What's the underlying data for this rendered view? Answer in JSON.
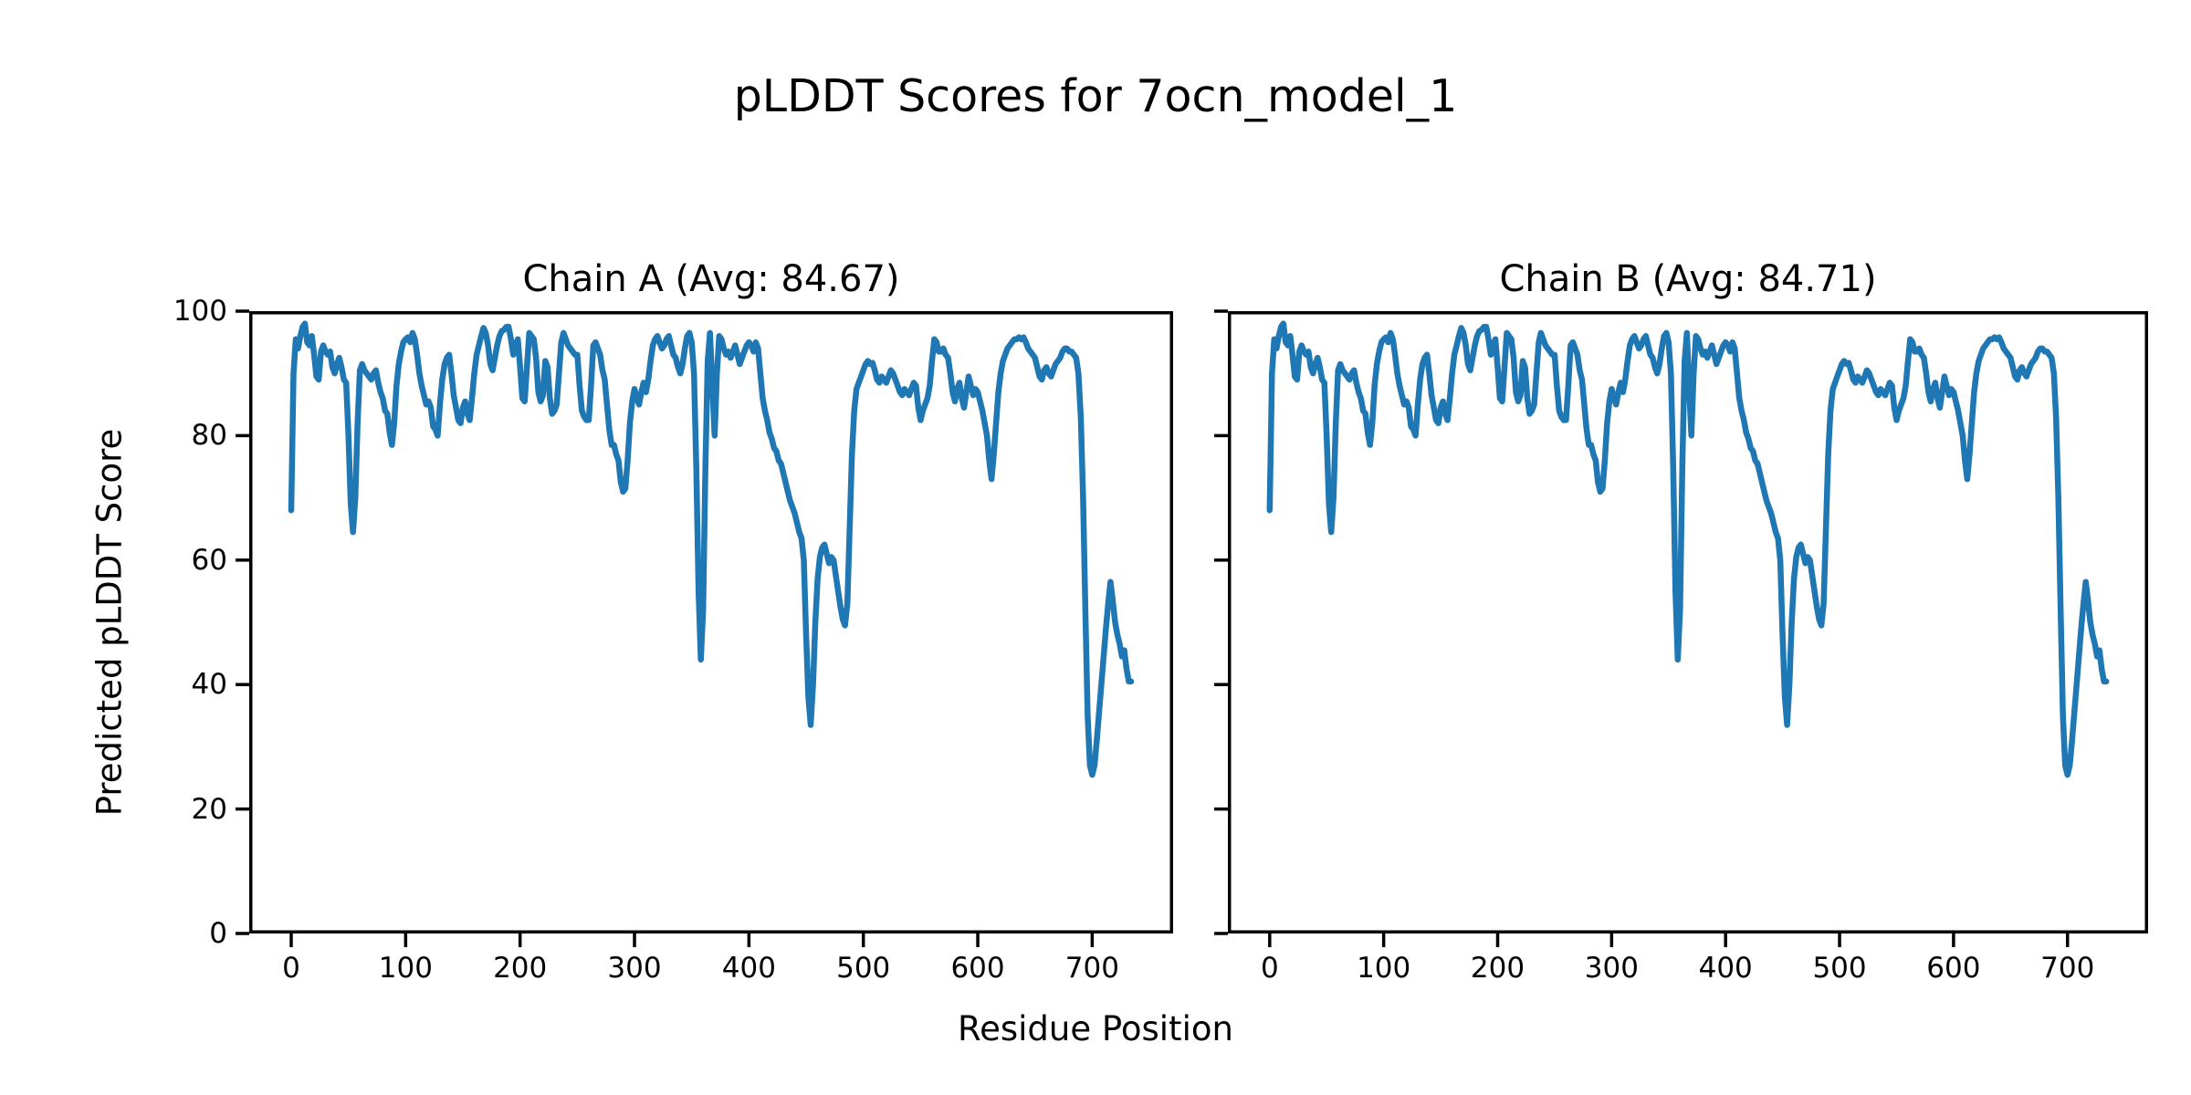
{
  "figure": {
    "background_color": "#ffffff",
    "text_color": "#000000"
  },
  "chart_data": {
    "type": "line",
    "title": "pLDDT Scores for 7ocn_model_1",
    "xlabel": "Residue Position",
    "ylabel": "Predicted pLDDT Score",
    "x_ticks": [
      0,
      100,
      200,
      300,
      400,
      500,
      600,
      700
    ],
    "y_ticks": [
      0,
      20,
      40,
      60,
      80,
      100
    ],
    "xlim": [
      -36.7,
      770.7
    ],
    "ylim": [
      0,
      100
    ],
    "grid": false,
    "legend": "none",
    "line_color": "#1f77b4",
    "x_start": 0,
    "x_step": 2,
    "series": [
      {
        "name": "Chain A",
        "avg": 84.67,
        "title": "Chain A (Avg: 84.67)",
        "values": [
          68,
          90,
          95.5,
          94,
          96,
          97.5,
          98,
          95,
          94.5,
          96,
          93,
          89.5,
          89,
          93.5,
          94.5,
          93.5,
          93,
          93.5,
          91,
          90,
          91.5,
          92.5,
          91,
          89,
          88.5,
          80,
          69,
          64.5,
          70,
          82,
          90.5,
          91.5,
          90.5,
          90,
          89.5,
          89,
          90,
          90.5,
          88.5,
          87,
          86,
          84,
          83.5,
          80.5,
          78.5,
          82,
          88,
          91.5,
          93.5,
          95,
          95.5,
          95.8,
          95,
          96.5,
          95.5,
          93,
          90,
          88,
          86.5,
          85,
          85.5,
          84.5,
          81.5,
          81,
          80,
          85,
          89,
          91.5,
          92.5,
          93,
          90,
          86.5,
          84.5,
          82.5,
          82,
          84.5,
          85.5,
          83.5,
          82.5,
          86,
          90,
          93,
          94.5,
          96,
          97.3,
          96.5,
          94.5,
          91.5,
          90.5,
          92.5,
          94.5,
          96,
          96.8,
          97,
          97.5,
          97.5,
          95.5,
          93,
          94.5,
          95.5,
          91,
          86,
          85.5,
          91,
          96.5,
          96,
          95.5,
          92.5,
          87,
          85.5,
          86.5,
          92,
          91,
          86,
          83.5,
          84,
          85,
          90,
          95,
          96.5,
          95.5,
          94.5,
          94,
          93.5,
          93,
          93,
          88,
          84,
          83,
          82.5,
          82.5,
          88,
          94.5,
          95,
          94,
          93,
          90.5,
          89,
          85,
          81,
          78.5,
          78.5,
          77,
          76,
          72.5,
          71,
          71.5,
          76,
          82,
          85.5,
          87.5,
          86,
          85,
          87,
          88.5,
          87,
          89,
          92,
          94.5,
          95.5,
          96,
          95,
          94,
          94.5,
          95.5,
          96,
          94.5,
          93,
          92.5,
          91,
          90,
          91.5,
          94,
          96,
          96.5,
          95,
          90,
          75,
          55,
          44,
          52,
          75,
          92,
          96.5,
          88,
          80,
          90,
          96,
          95.5,
          94,
          93,
          93.5,
          92.5,
          93.5,
          94.5,
          93,
          91.5,
          92.5,
          93.5,
          94.5,
          95,
          94.5,
          93.5,
          95,
          94,
          90,
          86,
          84,
          82.5,
          80.5,
          79.5,
          78,
          77.5,
          76,
          75.5,
          74,
          72.5,
          71,
          69.5,
          68.5,
          67.5,
          66,
          64.5,
          63.5,
          60,
          48,
          38,
          33.5,
          40,
          50,
          57,
          60.5,
          62,
          62.5,
          61,
          59.5,
          60.5,
          60,
          57.5,
          55,
          52.5,
          50.5,
          49.5,
          53,
          65,
          77,
          84,
          87.5,
          88.5,
          89.5,
          90.5,
          91.5,
          92,
          91.5,
          91.7,
          90.5,
          89,
          88.5,
          89.5,
          89,
          88.5,
          89.5,
          90.5,
          90,
          89,
          88,
          87,
          86.5,
          87.5,
          87,
          86.5,
          87.5,
          88.5,
          88,
          84.5,
          82.5,
          84,
          85,
          86,
          88,
          92,
          95.5,
          95,
          93.5,
          93.5,
          94,
          93,
          92.5,
          90,
          87,
          85.5,
          87.5,
          88.5,
          86,
          84.5,
          87,
          89.5,
          88,
          86.5,
          87.5,
          87,
          85.5,
          84,
          82,
          80,
          76,
          73,
          77,
          82,
          87,
          90,
          92,
          93,
          94,
          94.5,
          95,
          95.5,
          95.5,
          95.8,
          95.5,
          95.8,
          95,
          94,
          93.5,
          93,
          92.5,
          91,
          89.5,
          89,
          90.5,
          91,
          90,
          89.5,
          90.5,
          91.5,
          92,
          92.5,
          93.5,
          94,
          94,
          93.5,
          93.5,
          93,
          92.5,
          90,
          83,
          70,
          52,
          35,
          27,
          25.5,
          27,
          31,
          35.5,
          40,
          44.5,
          49,
          53,
          56.5,
          53.5,
          50,
          48,
          46.5,
          44.5,
          45.5,
          42.5,
          40.5,
          40.5
        ]
      },
      {
        "name": "Chain B",
        "avg": 84.71,
        "title": "Chain B (Avg: 84.71)",
        "values": [
          68,
          90,
          95.5,
          94,
          96,
          97.5,
          98,
          95,
          94.5,
          96,
          93,
          89.5,
          89,
          93.5,
          94.5,
          93.5,
          93,
          93.5,
          91,
          90,
          91.5,
          92.5,
          91,
          89,
          88.5,
          80,
          69,
          64.5,
          70,
          82,
          90.5,
          91.5,
          90.5,
          90,
          89.5,
          89,
          90,
          90.5,
          88.5,
          87,
          86,
          84,
          83.5,
          80.5,
          78.5,
          82,
          88,
          91.5,
          93.5,
          95,
          95.5,
          95.8,
          95,
          96.5,
          95.5,
          93,
          90,
          88,
          86.5,
          85,
          85.5,
          84.5,
          81.5,
          81,
          80,
          85,
          89,
          91.5,
          92.5,
          93,
          90,
          86.5,
          84.5,
          82.5,
          82,
          84.5,
          85.5,
          83.5,
          82.5,
          86,
          90,
          93,
          94.5,
          96,
          97.3,
          96.5,
          94.5,
          91.5,
          90.5,
          92.5,
          94.5,
          96,
          96.8,
          97,
          97.5,
          97.5,
          95.5,
          93,
          94.5,
          95.5,
          91,
          86,
          85.5,
          91,
          96.5,
          96,
          95.5,
          92.5,
          87,
          85.5,
          86.5,
          92,
          91,
          86,
          83.5,
          84,
          85,
          90,
          95,
          96.5,
          95.5,
          94.5,
          94,
          93.5,
          93,
          93,
          88,
          84,
          83,
          82.5,
          82.5,
          88,
          94.5,
          95,
          94,
          93,
          90.5,
          89,
          85,
          81,
          78.5,
          78.5,
          77,
          76,
          72.5,
          71,
          71.5,
          76,
          82,
          85.5,
          87.5,
          86,
          85,
          87,
          88.5,
          87,
          89,
          92,
          94.5,
          95.5,
          96,
          95,
          94,
          94.5,
          95.5,
          96,
          94.5,
          93,
          92.5,
          91,
          90,
          91.5,
          94,
          96,
          96.5,
          95,
          90,
          75,
          55,
          44,
          52,
          75,
          92,
          96.5,
          88,
          80,
          90,
          96,
          95.5,
          94,
          93,
          93.5,
          92.5,
          93.5,
          94.5,
          93,
          91.5,
          92.5,
          93.5,
          94.5,
          95,
          94.5,
          93.5,
          95,
          94,
          90,
          86,
          84,
          82.5,
          80.5,
          79.5,
          78,
          77.5,
          76,
          75.5,
          74,
          72.5,
          71,
          69.5,
          68.5,
          67.5,
          66,
          64.5,
          63.5,
          60,
          48,
          38,
          33.5,
          40,
          50,
          57,
          60.5,
          62,
          62.5,
          61,
          59.5,
          60.5,
          60,
          57.5,
          55,
          52.5,
          50.5,
          49.5,
          53,
          65,
          77,
          84,
          87.5,
          88.5,
          89.5,
          90.5,
          91.5,
          92,
          91.5,
          91.7,
          90.5,
          89,
          88.5,
          89.5,
          89,
          88.5,
          89.5,
          90.5,
          90,
          89,
          88,
          87,
          86.5,
          87.5,
          87,
          86.5,
          87.5,
          88.5,
          88,
          84.5,
          82.5,
          84,
          85,
          86,
          88,
          92,
          95.5,
          95,
          93.5,
          93.5,
          94,
          93,
          92.5,
          90,
          87,
          85.5,
          87.5,
          88.5,
          86,
          84.5,
          87,
          89.5,
          88,
          86.5,
          87.5,
          87,
          85.5,
          84,
          82,
          80,
          76,
          73,
          77,
          82,
          87,
          90,
          92,
          93,
          94,
          94.5,
          95,
          95.5,
          95.5,
          95.8,
          95.5,
          95.8,
          95,
          94,
          93.5,
          93,
          92.5,
          91,
          89.5,
          89,
          90.5,
          91,
          90,
          89.5,
          90.5,
          91.5,
          92,
          92.5,
          93.5,
          94,
          94,
          93.5,
          93.5,
          93,
          92.5,
          90,
          83,
          70,
          52,
          35,
          27,
          25.5,
          27,
          31,
          35.5,
          40,
          44.5,
          49,
          53,
          56.5,
          53.5,
          50,
          48,
          46.5,
          44.5,
          45.5,
          42.5,
          40.5,
          40.5
        ]
      }
    ]
  }
}
